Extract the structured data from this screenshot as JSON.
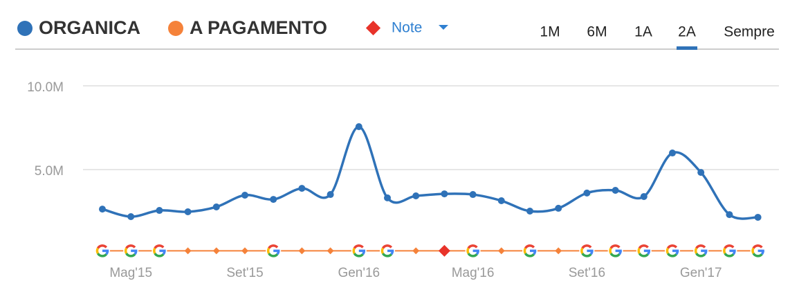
{
  "chart_data": {
    "type": "line",
    "categories": [
      null,
      "Mag'15",
      null,
      null,
      null,
      "Set'15",
      null,
      null,
      null,
      "Gen'16",
      null,
      null,
      null,
      "Mag'16",
      null,
      null,
      null,
      "Set'16",
      null,
      null,
      null,
      "Gen'17",
      null,
      null
    ],
    "series": [
      {
        "name": "ORGANICA",
        "color": "#2f72b8",
        "values": [
          2640000,
          2190000,
          2560000,
          2480000,
          2770000,
          3470000,
          3220000,
          3880000,
          3510000,
          7560000,
          3310000,
          3430000,
          3550000,
          3510000,
          3140000,
          2520000,
          2690000,
          3600000,
          3760000,
          3390000,
          5990000,
          4830000,
          2310000,
          2150000
        ]
      },
      {
        "name": "A PAGAMENTO",
        "color": "#f5823a",
        "values": [
          150000,
          150000,
          150000,
          150000,
          150000,
          150000,
          150000,
          150000,
          150000,
          150000,
          150000,
          150000,
          150000,
          150000,
          150000,
          150000,
          150000,
          150000,
          150000,
          150000,
          150000,
          150000,
          150000,
          150000
        ]
      }
    ],
    "notes_label": "Note",
    "note_color": "#e8332a",
    "periods": [
      "1M",
      "6M",
      "1A",
      "2A",
      "Sempre"
    ],
    "active_period": "2A",
    "ylim": [
      0,
      10000000
    ],
    "yticks": [
      {
        "value": 5000000,
        "label": "5.0M"
      },
      {
        "value": 10000000,
        "label": "10.0M"
      }
    ],
    "grid": true
  }
}
